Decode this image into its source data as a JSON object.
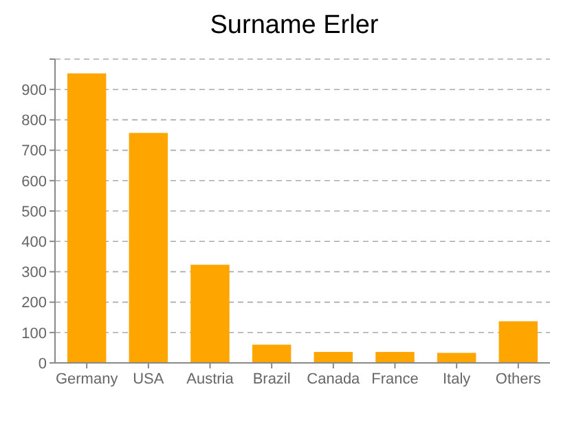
{
  "chart_data": {
    "type": "bar",
    "title": "Surname Erler",
    "categories": [
      "Germany",
      "USA",
      "Austria",
      "Brazil",
      "Canada",
      "France",
      "Italy",
      "Others"
    ],
    "values": [
      953,
      757,
      323,
      60,
      36,
      36,
      33,
      137
    ],
    "color": "#ffa500",
    "ylim": [
      0,
      1000
    ],
    "yticks": [
      0,
      100,
      200,
      300,
      400,
      500,
      600,
      700,
      800,
      900,
      {
        "value": 1000,
        "label": null
      }
    ],
    "grid": "y"
  }
}
